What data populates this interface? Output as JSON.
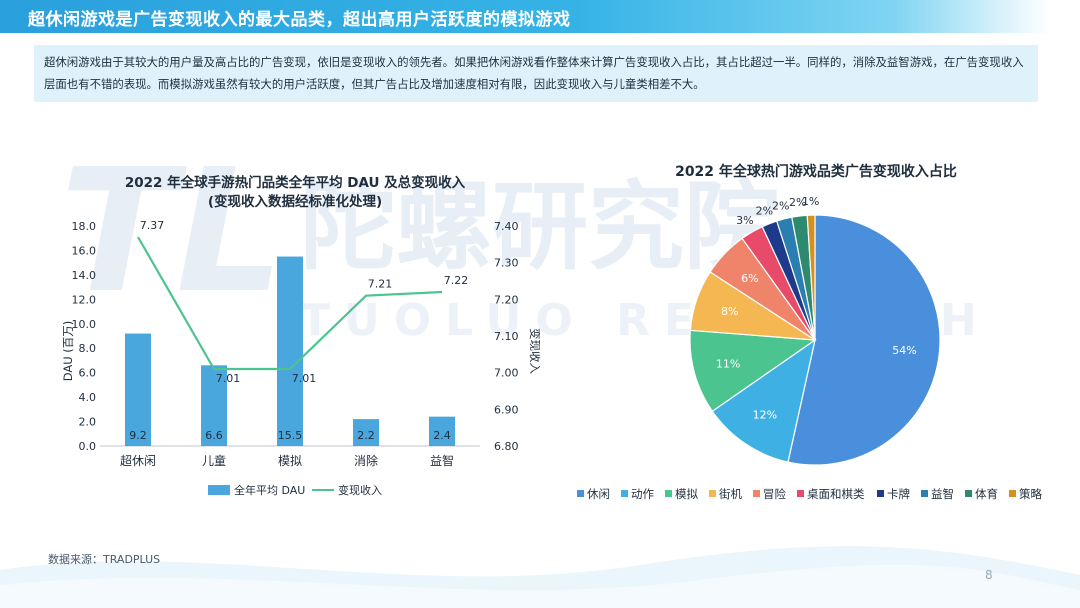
{
  "header": {
    "title": "超休闲游戏是广告变现收入的最大品类，超出高用户活跃度的模拟游戏"
  },
  "intro": {
    "text": "超休闲游戏由于其较大的用户量及高占比的广告变现，依旧是变现收入的领先者。如果把休闲游戏看作整体来计算广告变现收入占比，其占比超过一半。同样的，消除及益智游戏，在广告变现收入层面也有不错的表现。而模拟游戏虽然有较大的用户活跃度，但其广告占比及增加速度相对有限，因此变现收入与儿童类相差不大。"
  },
  "watermark": {
    "logo": "TL",
    "cn": "陀螺研究院",
    "en": "TUOLUO RESEARCH"
  },
  "chart_data": [
    {
      "type": "bar",
      "title": "2022 年全球手游热门品类全年平均 DAU 及总变现收入",
      "subtitle": "(变现收入数据经标准化处理)",
      "categories": [
        "超休闲",
        "儿童",
        "模拟",
        "消除",
        "益智"
      ],
      "series": [
        {
          "name": "全年平均 DAU",
          "type": "bar",
          "axis": "left",
          "color": "#4aa7dd",
          "values": [
            9.2,
            6.6,
            15.5,
            2.2,
            2.4
          ]
        },
        {
          "name": "变现收入",
          "type": "line",
          "axis": "right",
          "color": "#4cc48f",
          "values": [
            7.37,
            7.01,
            7.01,
            7.21,
            7.22
          ]
        }
      ],
      "ylabel": "DAU (百万)",
      "y2label": "变现收入",
      "ylim": [
        0,
        18
      ],
      "yticks": [
        "0.0",
        "2.0",
        "4.0",
        "6.0",
        "8.0",
        "10.0",
        "12.0",
        "14.0",
        "16.0",
        "18.0"
      ],
      "y2lim": [
        6.8,
        7.4
      ],
      "y2ticks": [
        "6.80",
        "6.90",
        "7.00",
        "7.10",
        "7.20",
        "7.30",
        "7.40"
      ],
      "legend": "bottom"
    },
    {
      "type": "pie",
      "title": "2022 年全球热门游戏品类广告变现收入占比",
      "slices": [
        {
          "name": "休闲",
          "value": 54,
          "color": "#4a8fdc"
        },
        {
          "name": "动作",
          "value": 12,
          "color": "#3fb0e3"
        },
        {
          "name": "模拟",
          "value": 11,
          "color": "#4cc48f"
        },
        {
          "name": "街机",
          "value": 8,
          "color": "#f5b751"
        },
        {
          "name": "冒险",
          "value": 6,
          "color": "#f0846a"
        },
        {
          "name": "桌面和棋类",
          "value": 3,
          "color": "#e84a6a"
        },
        {
          "name": "卡牌",
          "value": 2,
          "color": "#1e3a8a"
        },
        {
          "name": "益智",
          "value": 2,
          "color": "#2a7fb0"
        },
        {
          "name": "体育",
          "value": 2,
          "color": "#2e8a6e"
        },
        {
          "name": "策略",
          "value": 1,
          "color": "#d6901f"
        }
      ],
      "legend": "bottom"
    }
  ],
  "footer": {
    "source": "数据来源：TRADPLUS",
    "page": "8"
  }
}
